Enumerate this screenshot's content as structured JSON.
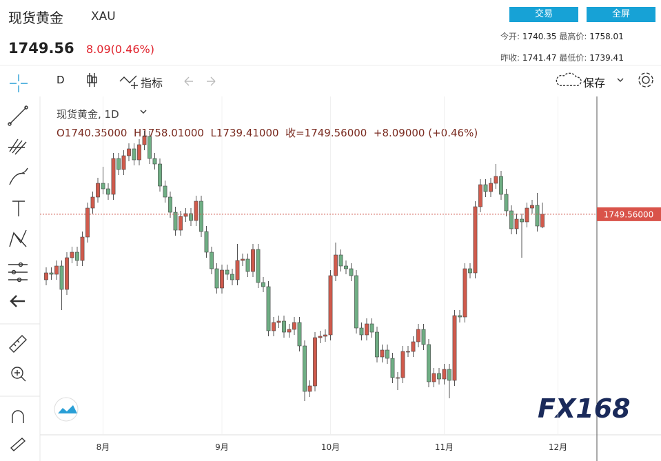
{
  "header": {
    "title": "现货黄金",
    "symbol": "XAU",
    "price": "1749.56",
    "change": "8.09(0.46%)",
    "buttons": [
      "交易",
      "全屏"
    ],
    "stats": [
      [
        "今开:",
        "1740.35",
        "最高价:",
        "1758.01"
      ],
      [
        "昨收:",
        "1741.47",
        "最低价:",
        "1739.41"
      ]
    ]
  },
  "toolbar": {
    "interval": "D",
    "indicators": "指标",
    "save": "保存"
  },
  "legend": {
    "name": "现货黄金, 1D",
    "ohlc": [
      "O1740.35000",
      "H1758.01000",
      "L1739.41000",
      "收=1749.56000",
      "+8.09000",
      "(+0.46%)"
    ]
  },
  "watermark": "FX168",
  "chart_data": {
    "type": "candlestick",
    "up_color": "#d05a4c",
    "down_color": "#6fae84",
    "open": [
      1702,
      1707,
      1706,
      1712,
      1695,
      1718,
      1722,
      1716,
      1733,
      1754,
      1762,
      1772,
      1768,
      1764,
      1790,
      1782,
      1792,
      1797,
      1789,
      1800,
      1806,
      1790,
      1786,
      1770,
      1762,
      1751,
      1738,
      1748,
      1750,
      1745,
      1759,
      1737,
      1722,
      1710,
      1696,
      1709,
      1706,
      1702,
      1716,
      1717,
      1708,
      1724,
      1700,
      1697,
      1665,
      1671,
      1672,
      1664,
      1666,
      1671,
      1654,
      1621,
      1625,
      1660,
      1661,
      1662,
      1705,
      1720,
      1712,
      1710,
      1705,
      1667,
      1662,
      1670,
      1664,
      1646,
      1651,
      1645,
      1631,
      1631,
      1650,
      1650,
      1657,
      1666,
      1655,
      1628,
      1634,
      1630,
      1637,
      1629,
      1676,
      1675,
      1710,
      1707,
      1755,
      1771,
      1766,
      1772,
      1777,
      1764,
      1752,
      1739,
      1746,
      1744,
      1754,
      1756,
      1740.35
    ],
    "high": [
      1711,
      1711,
      1716,
      1716,
      1722,
      1726,
      1726,
      1737,
      1758,
      1766,
      1776,
      1784,
      1772,
      1794,
      1794,
      1796,
      1801,
      1801,
      1804,
      1810,
      1810,
      1794,
      1790,
      1774,
      1766,
      1755,
      1752,
      1754,
      1754,
      1763,
      1763,
      1741,
      1726,
      1714,
      1713,
      1713,
      1710,
      1728,
      1721,
      1721,
      1728,
      1728,
      1704,
      1701,
      1675,
      1676,
      1676,
      1670,
      1675,
      1675,
      1658,
      1629,
      1664,
      1665,
      1666,
      1709,
      1729,
      1724,
      1716,
      1714,
      1709,
      1671,
      1674,
      1674,
      1668,
      1655,
      1655,
      1649,
      1635,
      1654,
      1654,
      1661,
      1670,
      1670,
      1659,
      1638,
      1638,
      1641,
      1641,
      1680,
      1680,
      1714,
      1714,
      1759,
      1775,
      1775,
      1776,
      1786,
      1781,
      1768,
      1756,
      1750,
      1750,
      1758,
      1760,
      1765,
      1758.01
    ],
    "low": [
      1698,
      1702,
      1702,
      1680,
      1691,
      1714,
      1712,
      1712,
      1729,
      1750,
      1758,
      1764,
      1760,
      1760,
      1778,
      1778,
      1788,
      1785,
      1785,
      1796,
      1786,
      1782,
      1766,
      1758,
      1747,
      1734,
      1734,
      1744,
      1741,
      1741,
      1733,
      1718,
      1706,
      1692,
      1692,
      1702,
      1698,
      1698,
      1712,
      1704,
      1704,
      1696,
      1693,
      1661,
      1661,
      1667,
      1660,
      1660,
      1662,
      1650,
      1614,
      1617,
      1621,
      1656,
      1657,
      1658,
      1701,
      1708,
      1706,
      1701,
      1663,
      1658,
      1658,
      1660,
      1642,
      1642,
      1641,
      1627,
      1622,
      1627,
      1646,
      1646,
      1653,
      1651,
      1624,
      1624,
      1626,
      1626,
      1616,
      1625,
      1671,
      1671,
      1703,
      1703,
      1751,
      1762,
      1762,
      1768,
      1760,
      1748,
      1735,
      1735,
      1718,
      1740,
      1750,
      1737,
      1739.41
    ],
    "close": [
      1707,
      1706,
      1712,
      1695,
      1718,
      1722,
      1716,
      1733,
      1754,
      1762,
      1772,
      1768,
      1764,
      1790,
      1782,
      1792,
      1797,
      1789,
      1800,
      1806,
      1790,
      1786,
      1770,
      1762,
      1751,
      1738,
      1748,
      1750,
      1745,
      1759,
      1737,
      1722,
      1710,
      1696,
      1709,
      1706,
      1702,
      1716,
      1717,
      1708,
      1724,
      1700,
      1697,
      1665,
      1671,
      1672,
      1664,
      1666,
      1671,
      1654,
      1621,
      1625,
      1660,
      1661,
      1662,
      1705,
      1720,
      1712,
      1710,
      1705,
      1667,
      1662,
      1670,
      1664,
      1646,
      1651,
      1645,
      1631,
      1631,
      1650,
      1650,
      1657,
      1666,
      1655,
      1628,
      1634,
      1630,
      1637,
      1629,
      1676,
      1675,
      1710,
      1707,
      1755,
      1771,
      1766,
      1772,
      1777,
      1764,
      1752,
      1739,
      1746,
      1744,
      1754,
      1756,
      1741,
      1749.56
    ],
    "ylim": [
      1590,
      1835
    ],
    "xlim": [
      -1.2,
      106.4
    ],
    "xticks": [
      {
        "value": 11,
        "label": "8月"
      },
      {
        "value": 34,
        "label": "9月"
      },
      {
        "value": 55,
        "label": "10月"
      },
      {
        "value": 77,
        "label": "11月"
      },
      {
        "value": 99,
        "label": "12月"
      }
    ],
    "last_price": {
      "value": 1749.56,
      "label": "1749.56000"
    },
    "grid": true
  }
}
